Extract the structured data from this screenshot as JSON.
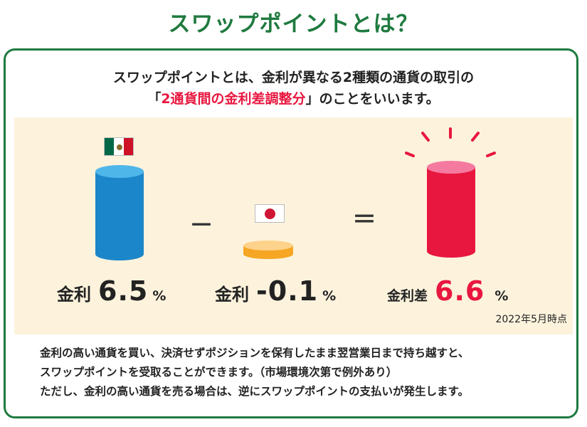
{
  "title": "スワップポイントとは？",
  "intro": {
    "line1": "スワップポイントとは、金利が異なる2種類の通貨の取引の",
    "line2_open": "「",
    "line2_emphasis": "2通貨間の金利差調整分",
    "line2_close": "」のことをいいます。"
  },
  "illustration": {
    "left": {
      "flag": "mexico-flag",
      "label": "金利",
      "value": "6.5",
      "unit": "%",
      "color": "#1b86c9"
    },
    "minus_sign": "－",
    "middle": {
      "flag": "japan-flag",
      "label": "金利",
      "value": "-0.1",
      "unit": "%",
      "color": "#f6a623"
    },
    "equals_sign": "＝",
    "right": {
      "label": "金利差",
      "value": "6.6",
      "unit": "%",
      "color": "#e8173f"
    },
    "as_of": "2022年5月時点"
  },
  "footer": {
    "line1": "金利の高い通貨を買い、決済せずポジションを保有したまま翌営業日まで持ち越すと、",
    "line2": "スワップポイントを受取ることができます。（市場環境次第で例外あり）",
    "line3": "ただし、金利の高い通貨を売る場合は、逆にスワップポイントの支払いが発生します。"
  },
  "colors": {
    "brand_green": "#1f7a3f",
    "accent_red": "#e8173f",
    "panel_bg": "#fdf3dd"
  }
}
